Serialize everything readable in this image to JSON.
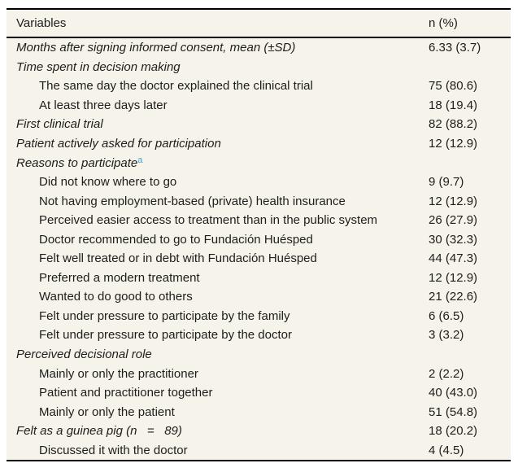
{
  "colors": {
    "page_background": "#ffffff",
    "table_background": "#f6f3ea",
    "text": "#1d1d1b",
    "rule": "#000000",
    "footnote_marker": "#4da3d1"
  },
  "table": {
    "header": {
      "variables_label": "Variables",
      "value_label": "n (%)"
    },
    "rows": [
      {
        "label": "Months after signing informed consent, mean (±SD)",
        "value": "6.33 (3.7)",
        "italic": true,
        "indent": false,
        "sup": ""
      },
      {
        "label": "Time spent in decision making",
        "value": "",
        "italic": true,
        "indent": false,
        "sup": ""
      },
      {
        "label": "The same day the doctor explained the clinical trial",
        "value": "75 (80.6)",
        "italic": false,
        "indent": true,
        "sup": ""
      },
      {
        "label": "At least three days later",
        "value": "18 (19.4)",
        "italic": false,
        "indent": true,
        "sup": ""
      },
      {
        "label": "First clinical trial",
        "value": "82 (88.2)",
        "italic": true,
        "indent": false,
        "sup": ""
      },
      {
        "label": "Patient actively asked for participation",
        "value": "12 (12.9)",
        "italic": true,
        "indent": false,
        "sup": ""
      },
      {
        "label": "Reasons to participate",
        "value": "",
        "italic": true,
        "indent": false,
        "sup": "a"
      },
      {
        "label": "Did not know where to go",
        "value": "9 (9.7)",
        "italic": false,
        "indent": true,
        "sup": ""
      },
      {
        "label": "Not having employment-based (private) health insurance",
        "value": "12 (12.9)",
        "italic": false,
        "indent": true,
        "sup": ""
      },
      {
        "label": "Perceived easier access to treatment than in the public system",
        "value": "26 (27.9)",
        "italic": false,
        "indent": true,
        "sup": ""
      },
      {
        "label": "Doctor recommended to go to Fundación Huésped",
        "value": "30 (32.3)",
        "italic": false,
        "indent": true,
        "sup": ""
      },
      {
        "label": "Felt well treated or in debt with Fundación Huésped",
        "value": "44 (47.3)",
        "italic": false,
        "indent": true,
        "sup": ""
      },
      {
        "label": "Preferred a modern treatment",
        "value": "12 (12.9)",
        "italic": false,
        "indent": true,
        "sup": ""
      },
      {
        "label": "Wanted to do good to others",
        "value": "21 (22.6)",
        "italic": false,
        "indent": true,
        "sup": ""
      },
      {
        "label": "Felt under pressure to participate by the family",
        "value": "6 (6.5)",
        "italic": false,
        "indent": true,
        "sup": ""
      },
      {
        "label": "Felt under pressure to participate by the doctor",
        "value": "3 (3.2)",
        "italic": false,
        "indent": true,
        "sup": ""
      },
      {
        "label": "Perceived decisional role",
        "value": "",
        "italic": true,
        "indent": false,
        "sup": ""
      },
      {
        "label": "Mainly or only the practitioner",
        "value": "2 (2.2)",
        "italic": false,
        "indent": true,
        "sup": ""
      },
      {
        "label": "Patient and practitioner together",
        "value": "40 (43.0)",
        "italic": false,
        "indent": true,
        "sup": ""
      },
      {
        "label": "Mainly or only the patient",
        "value": "51 (54.8)",
        "italic": false,
        "indent": true,
        "sup": ""
      },
      {
        "label": "Felt as a guinea pig (n   =   89)",
        "value": "18 (20.2)",
        "italic": true,
        "indent": false,
        "sup": ""
      },
      {
        "label": "Discussed it with the doctor",
        "value": "4 (4.5)",
        "italic": false,
        "indent": true,
        "sup": ""
      }
    ]
  }
}
